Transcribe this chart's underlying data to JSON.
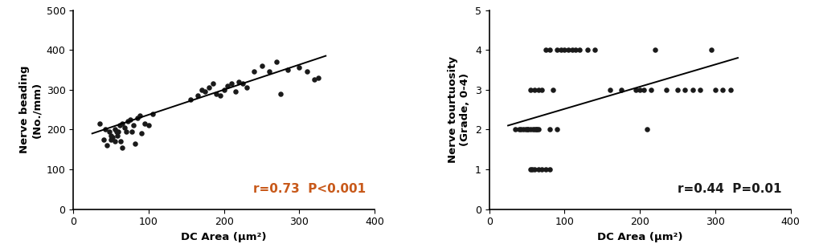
{
  "plot1": {
    "xlabel": "DC Area (μm²)",
    "ylabel": "Nerve beading\n(No./mm)",
    "xlim": [
      0,
      400
    ],
    "ylim": [
      0,
      500
    ],
    "xticks": [
      0,
      100,
      200,
      300,
      400
    ],
    "yticks": [
      0,
      100,
      200,
      300,
      400,
      500
    ],
    "annotation": "r=0.73  P<0.001",
    "scatter_x": [
      35,
      40,
      42,
      45,
      48,
      50,
      50,
      52,
      55,
      55,
      57,
      58,
      60,
      62,
      63,
      65,
      65,
      68,
      70,
      72,
      75,
      78,
      80,
      82,
      85,
      88,
      90,
      95,
      100,
      105,
      155,
      165,
      170,
      175,
      180,
      185,
      190,
      195,
      200,
      205,
      210,
      215,
      220,
      225,
      230,
      240,
      250,
      260,
      270,
      275,
      285,
      300,
      310,
      320,
      325
    ],
    "scatter_y": [
      215,
      175,
      200,
      160,
      195,
      175,
      185,
      180,
      200,
      170,
      195,
      185,
      195,
      210,
      170,
      155,
      215,
      205,
      195,
      220,
      225,
      195,
      210,
      165,
      230,
      235,
      190,
      215,
      210,
      240,
      275,
      285,
      300,
      295,
      305,
      315,
      290,
      285,
      300,
      310,
      315,
      295,
      320,
      315,
      305,
      345,
      360,
      345,
      370,
      290,
      350,
      355,
      345,
      325,
      330
    ],
    "line_x": [
      25,
      335
    ],
    "line_y": [
      190,
      385
    ],
    "line_color": "#000000",
    "scatter_color": "#1a1a1a",
    "annotation_color": "#c8591a"
  },
  "plot2": {
    "xlabel": "DC Area (μm²)",
    "ylabel": "Nerve tourtuosity\n(Grade, 0-4)",
    "xlim": [
      0,
      400
    ],
    "ylim": [
      0,
      5
    ],
    "xticks": [
      0,
      100,
      200,
      300,
      400
    ],
    "yticks": [
      0,
      1,
      2,
      3,
      4,
      5
    ],
    "annotation": "r=0.44  P=0.01",
    "scatter_x": [
      35,
      40,
      42,
      45,
      48,
      50,
      52,
      55,
      58,
      60,
      62,
      63,
      65,
      55,
      57,
      60,
      65,
      70,
      75,
      80,
      85,
      55,
      60,
      65,
      70,
      75,
      80,
      90,
      95,
      100,
      105,
      110,
      115,
      120,
      130,
      140,
      80,
      90,
      160,
      175,
      195,
      205,
      215,
      220,
      200,
      210,
      235,
      250,
      260,
      270,
      280,
      295,
      300,
      310,
      320
    ],
    "scatter_y": [
      2,
      2,
      2,
      2,
      2,
      2,
      2,
      2,
      2,
      2,
      2,
      2,
      2,
      1,
      1,
      1,
      1,
      1,
      1,
      1,
      3,
      3,
      3,
      3,
      3,
      4,
      4,
      4,
      4,
      4,
      4,
      4,
      4,
      4,
      4,
      4,
      2,
      2,
      3,
      3,
      3,
      3,
      3,
      4,
      3,
      2,
      3,
      3,
      3,
      3,
      3,
      4,
      3,
      3,
      3
    ],
    "line_x": [
      25,
      330
    ],
    "line_y": [
      2.1,
      3.8
    ],
    "line_color": "#000000",
    "scatter_color": "#1a1a1a",
    "annotation_color": "#1a1a1a"
  }
}
